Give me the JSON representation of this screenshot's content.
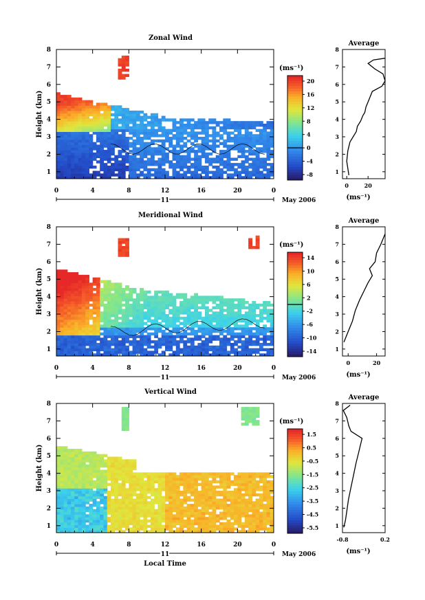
{
  "chart_data": [
    {
      "type": "heatmap",
      "title": "Zonal Wind",
      "xlabel": "",
      "ylabel": "Height (km)",
      "xticks": [
        "0",
        "4",
        "8",
        "12",
        "16",
        "20",
        "0"
      ],
      "yticks": [
        "1",
        "2",
        "3",
        "4",
        "5",
        "6",
        "7",
        "8"
      ],
      "ylim": [
        0.6,
        8
      ],
      "date_labels": {
        "day": "11",
        "month_year": "May 2006"
      },
      "colorbar": {
        "unit": "(ms⁻¹)",
        "ticks": [
          "20",
          "16",
          "12",
          "8",
          "4",
          "0",
          "-4",
          "-8"
        ],
        "zero_line": "0"
      },
      "average": {
        "title": "Average",
        "unit": "(ms⁻¹)",
        "xticks": [
          "0",
          "20"
        ],
        "xlim": [
          -4,
          36
        ],
        "profile": [
          [
            2,
            0.8
          ],
          [
            0,
            1.6
          ],
          [
            1,
            2.2
          ],
          [
            3,
            2.7
          ],
          [
            6,
            3.0
          ],
          [
            9,
            3.3
          ],
          [
            10,
            3.6
          ],
          [
            13,
            3.9
          ],
          [
            15,
            4.2
          ],
          [
            17,
            4.4
          ],
          [
            18,
            4.7
          ],
          [
            20,
            5.0
          ],
          [
            22,
            5.3
          ],
          [
            24,
            5.6
          ],
          [
            33,
            5.9
          ],
          [
            36,
            6.2
          ],
          [
            34,
            6.6
          ],
          [
            26,
            6.9
          ],
          [
            20,
            7.2
          ],
          [
            25,
            7.4
          ],
          [
            36,
            7.5
          ]
        ]
      }
    },
    {
      "type": "heatmap",
      "title": "Meridional Wind",
      "xlabel": "",
      "ylabel": "Height (km)",
      "xticks": [
        "0",
        "4",
        "8",
        "12",
        "16",
        "20",
        "0"
      ],
      "yticks": [
        "1",
        "2",
        "3",
        "4",
        "5",
        "6",
        "7",
        "8"
      ],
      "ylim": [
        0.6,
        8
      ],
      "date_labels": {
        "day": "11",
        "month_year": "May 2006"
      },
      "colorbar": {
        "unit": "(ms⁻¹)",
        "ticks": [
          "14",
          "10",
          "6",
          "2",
          "-2",
          "-6",
          "-10",
          "-14"
        ],
        "zero_line": "0"
      },
      "average": {
        "title": "Average",
        "unit": "(ms⁻¹)",
        "xticks": [
          "0",
          "20"
        ],
        "xlim": [
          -4,
          26
        ],
        "profile": [
          [
            -3,
            1.4
          ],
          [
            0,
            2.0
          ],
          [
            3,
            2.6
          ],
          [
            5,
            3.2
          ],
          [
            8,
            3.8
          ],
          [
            11,
            4.3
          ],
          [
            14,
            4.8
          ],
          [
            17,
            5.2
          ],
          [
            15,
            5.6
          ],
          [
            19,
            6.0
          ],
          [
            20,
            6.5
          ],
          [
            23,
            7.0
          ],
          [
            26,
            7.6
          ]
        ]
      }
    },
    {
      "type": "heatmap",
      "title": "Vertical Wind",
      "xlabel": "Local Time",
      "ylabel": "Height (km)",
      "xticks": [
        "0",
        "4",
        "8",
        "12",
        "16",
        "20",
        "0"
      ],
      "yticks": [
        "1",
        "2",
        "3",
        "4",
        "5",
        "6",
        "7",
        "8"
      ],
      "ylim": [
        0.6,
        8
      ],
      "date_labels": {
        "day": "11",
        "month_year": "May 2006"
      },
      "colorbar": {
        "unit": "(ms⁻¹)",
        "ticks": [
          "1.5",
          "0.5",
          "-0.5",
          "-1.5",
          "-2.5",
          "-3.5",
          "-4.5",
          "-5.5"
        ]
      },
      "average": {
        "title": "Average",
        "unit": "(ms⁻¹)",
        "xticks": [
          "-0.8",
          "0.2"
        ],
        "xlim": [
          -0.8,
          0.2
        ],
        "profile": [
          [
            -0.77,
            0.9
          ],
          [
            -0.73,
            1.3
          ],
          [
            -0.7,
            1.8
          ],
          [
            -0.66,
            2.5
          ],
          [
            -0.6,
            3.2
          ],
          [
            -0.54,
            3.9
          ],
          [
            -0.48,
            4.6
          ],
          [
            -0.42,
            5.2
          ],
          [
            -0.38,
            5.6
          ],
          [
            -0.34,
            6.0
          ],
          [
            -0.6,
            6.4
          ],
          [
            -0.65,
            6.7
          ],
          [
            -0.7,
            7.2
          ],
          [
            -0.78,
            7.6
          ],
          [
            -0.62,
            7.9
          ]
        ]
      }
    }
  ]
}
